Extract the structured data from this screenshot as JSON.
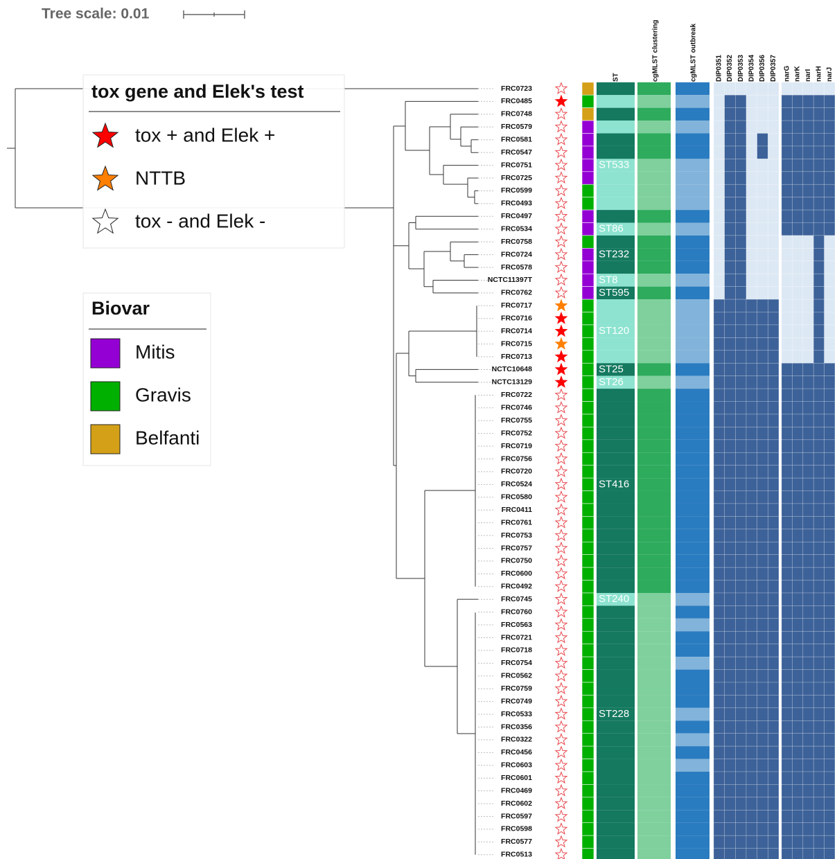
{
  "tree_scale": "Tree scale: 0.01",
  "legends": {
    "tox": {
      "title": "tox gene and Elek's test",
      "items": [
        {
          "label": "tox + and Elek +",
          "color": "#ff0000"
        },
        {
          "label": "NTTB",
          "color": "#ff7f00"
        },
        {
          "label": "tox - and Elek -",
          "color": "#ffffff"
        }
      ]
    },
    "biovar": {
      "title": "Biovar",
      "items": [
        {
          "label": "Mitis",
          "color": "#9400d3"
        },
        {
          "label": "Gravis",
          "color": "#00b000"
        },
        {
          "label": "Belfanti",
          "color": "#d4a017"
        }
      ]
    }
  },
  "columns": {
    "st": {
      "header": "ST",
      "colors": [
        "#14795f",
        "#8de3d0"
      ]
    },
    "cgmlst": {
      "header": "cgMLST clustering",
      "colors": [
        "#2eab5d",
        "#7fd09d"
      ]
    },
    "outbreak": {
      "header": "cgMLST outbreak",
      "colors": [
        "#2a7cc0",
        "#82b3da"
      ]
    },
    "genes": {
      "headers": [
        "DIP0351",
        "DIP0352",
        "DIP0353",
        "DIP0354",
        "DIP0356",
        "DIP0357",
        "narG",
        "narK",
        "narI",
        "narH",
        "narJ"
      ],
      "colors": [
        "#dce8f4",
        "#3d6299"
      ]
    }
  },
  "rows": [
    {
      "label": "FRC0723",
      "tox": 2,
      "biovar": 2,
      "st": 0,
      "cgmlst": 0,
      "outbreak": 0,
      "genes": [
        0,
        0,
        0,
        0,
        0,
        0,
        0,
        0,
        0,
        0,
        0
      ]
    },
    {
      "label": "FRC0485",
      "tox": 0,
      "biovar": 1,
      "st": 1,
      "cgmlst": 1,
      "outbreak": 1,
      "genes": [
        0,
        1,
        1,
        0,
        0,
        0,
        1,
        1,
        1,
        1,
        1
      ]
    },
    {
      "label": "FRC0748",
      "tox": 2,
      "biovar": 2,
      "st": 0,
      "cgmlst": 0,
      "outbreak": 0,
      "genes": [
        0,
        1,
        1,
        0,
        0,
        0,
        1,
        1,
        1,
        1,
        1
      ]
    },
    {
      "label": "FRC0579",
      "tox": 2,
      "biovar": 0,
      "st": 1,
      "cgmlst": 1,
      "outbreak": 1,
      "genes": [
        0,
        1,
        1,
        0,
        0,
        0,
        1,
        1,
        1,
        1,
        1
      ]
    },
    {
      "label": "FRC0581",
      "tox": 2,
      "biovar": 0,
      "st": 0,
      "cgmlst": 0,
      "outbreak": 0,
      "genes": [
        0,
        1,
        1,
        0,
        1,
        0,
        1,
        1,
        1,
        1,
        1
      ]
    },
    {
      "label": "FRC0547",
      "tox": 2,
      "biovar": 0,
      "st": 0,
      "cgmlst": 0,
      "outbreak": 0,
      "genes": [
        0,
        1,
        1,
        0,
        1,
        0,
        1,
        1,
        1,
        1,
        1
      ]
    },
    {
      "label": "FRC0751",
      "tox": 2,
      "biovar": 0,
      "st": 1,
      "st_label": "ST533",
      "cgmlst": 1,
      "outbreak": 1,
      "genes": [
        0,
        1,
        1,
        0,
        0,
        0,
        1,
        1,
        1,
        1,
        1
      ]
    },
    {
      "label": "FRC0725",
      "tox": 2,
      "biovar": 0,
      "st": 1,
      "cgmlst": 1,
      "outbreak": 1,
      "genes": [
        0,
        1,
        1,
        0,
        0,
        0,
        1,
        1,
        1,
        1,
        1
      ]
    },
    {
      "label": "FRC0599",
      "tox": 2,
      "biovar": 1,
      "st": 1,
      "cgmlst": 1,
      "outbreak": 1,
      "genes": [
        0,
        1,
        1,
        0,
        0,
        0,
        1,
        1,
        1,
        1,
        1
      ]
    },
    {
      "label": "FRC0493",
      "tox": 2,
      "biovar": 1,
      "st": 1,
      "cgmlst": 1,
      "outbreak": 1,
      "genes": [
        0,
        1,
        1,
        0,
        0,
        0,
        1,
        1,
        1,
        1,
        1
      ]
    },
    {
      "label": "FRC0497",
      "tox": 2,
      "biovar": 0,
      "st": 0,
      "cgmlst": 0,
      "outbreak": 0,
      "genes": [
        0,
        1,
        1,
        0,
        0,
        0,
        1,
        1,
        1,
        1,
        1
      ]
    },
    {
      "label": "FRC0534",
      "tox": 2,
      "biovar": 0,
      "st": 1,
      "st_label": "ST86",
      "cgmlst": 1,
      "outbreak": 1,
      "genes": [
        0,
        1,
        1,
        0,
        0,
        0,
        1,
        1,
        1,
        1,
        1
      ]
    },
    {
      "label": "FRC0758",
      "tox": 2,
      "biovar": 1,
      "st": 0,
      "cgmlst": 0,
      "outbreak": 0,
      "genes": [
        0,
        1,
        1,
        0,
        0,
        0,
        0,
        0,
        0,
        1,
        0
      ]
    },
    {
      "label": "FRC0724",
      "tox": 2,
      "biovar": 0,
      "st": 0,
      "st_label": "ST232",
      "cgmlst": 0,
      "outbreak": 0,
      "genes": [
        0,
        1,
        1,
        0,
        0,
        0,
        0,
        0,
        0,
        1,
        0
      ]
    },
    {
      "label": "FRC0578",
      "tox": 2,
      "biovar": 0,
      "st": 0,
      "cgmlst": 0,
      "outbreak": 0,
      "genes": [
        0,
        1,
        1,
        0,
        0,
        0,
        0,
        0,
        0,
        1,
        0
      ]
    },
    {
      "label": "NCTC11397T",
      "tox": 2,
      "biovar": 0,
      "st": 1,
      "st_label": "ST8",
      "cgmlst": 1,
      "outbreak": 1,
      "genes": [
        0,
        1,
        1,
        0,
        0,
        0,
        0,
        0,
        0,
        1,
        0
      ]
    },
    {
      "label": "FRC0762",
      "tox": 2,
      "biovar": 0,
      "st": 0,
      "st_label": "ST595",
      "cgmlst": 0,
      "outbreak": 0,
      "genes": [
        0,
        1,
        1,
        0,
        0,
        0,
        0,
        0,
        0,
        1,
        0
      ]
    },
    {
      "label": "FRC0717",
      "tox": 1,
      "biovar": 1,
      "st": 1,
      "cgmlst": 1,
      "outbreak": 1,
      "genes": [
        1,
        1,
        1,
        1,
        1,
        1,
        0,
        0,
        0,
        1,
        0
      ]
    },
    {
      "label": "FRC0716",
      "tox": 0,
      "biovar": 1,
      "st": 1,
      "cgmlst": 1,
      "outbreak": 1,
      "genes": [
        1,
        1,
        1,
        1,
        1,
        1,
        0,
        0,
        0,
        1,
        0
      ]
    },
    {
      "label": "FRC0714",
      "tox": 0,
      "biovar": 1,
      "st": 1,
      "st_label": "ST120",
      "cgmlst": 1,
      "outbreak": 1,
      "genes": [
        1,
        1,
        1,
        1,
        1,
        1,
        0,
        0,
        0,
        1,
        0
      ]
    },
    {
      "label": "FRC0715",
      "tox": 1,
      "biovar": 1,
      "st": 1,
      "cgmlst": 1,
      "outbreak": 1,
      "genes": [
        1,
        1,
        1,
        1,
        1,
        1,
        0,
        0,
        0,
        1,
        0
      ]
    },
    {
      "label": "FRC0713",
      "tox": 0,
      "biovar": 1,
      "st": 1,
      "cgmlst": 1,
      "outbreak": 1,
      "genes": [
        1,
        1,
        1,
        1,
        1,
        1,
        0,
        0,
        0,
        1,
        0
      ]
    },
    {
      "label": "NCTC10648",
      "tox": 0,
      "biovar": 1,
      "st": 0,
      "st_label": "ST25",
      "cgmlst": 0,
      "outbreak": 0,
      "genes": [
        1,
        1,
        1,
        1,
        1,
        1,
        1,
        1,
        1,
        1,
        1
      ]
    },
    {
      "label": "NCTC13129",
      "tox": 0,
      "biovar": 1,
      "st": 1,
      "st_label": "ST26",
      "cgmlst": 1,
      "outbreak": 1,
      "genes": [
        1,
        1,
        1,
        1,
        1,
        1,
        1,
        1,
        1,
        1,
        1
      ]
    },
    {
      "label": "FRC0722",
      "tox": 2,
      "biovar": 1,
      "st": 0,
      "cgmlst": 0,
      "outbreak": 0,
      "genes": [
        1,
        1,
        1,
        1,
        1,
        1,
        1,
        1,
        1,
        1,
        1
      ]
    },
    {
      "label": "FRC0746",
      "tox": 2,
      "biovar": 1,
      "st": 0,
      "cgmlst": 0,
      "outbreak": 0,
      "genes": [
        1,
        1,
        1,
        1,
        1,
        1,
        1,
        1,
        1,
        1,
        1
      ]
    },
    {
      "label": "FRC0755",
      "tox": 2,
      "biovar": 1,
      "st": 0,
      "cgmlst": 0,
      "outbreak": 0,
      "genes": [
        1,
        1,
        1,
        1,
        1,
        1,
        1,
        1,
        1,
        1,
        1
      ]
    },
    {
      "label": "FRC0752",
      "tox": 2,
      "biovar": 1,
      "st": 0,
      "cgmlst": 0,
      "outbreak": 0,
      "genes": [
        1,
        1,
        1,
        1,
        1,
        1,
        1,
        1,
        1,
        1,
        1
      ]
    },
    {
      "label": "FRC0719",
      "tox": 2,
      "biovar": 1,
      "st": 0,
      "cgmlst": 0,
      "outbreak": 0,
      "genes": [
        1,
        1,
        1,
        1,
        1,
        1,
        1,
        1,
        1,
        1,
        1
      ]
    },
    {
      "label": "FRC0756",
      "tox": 2,
      "biovar": 1,
      "st": 0,
      "cgmlst": 0,
      "outbreak": 0,
      "genes": [
        1,
        1,
        1,
        1,
        1,
        1,
        1,
        1,
        1,
        1,
        1
      ]
    },
    {
      "label": "FRC0720",
      "tox": 2,
      "biovar": 1,
      "st": 0,
      "cgmlst": 0,
      "outbreak": 0,
      "genes": [
        1,
        1,
        1,
        1,
        1,
        1,
        1,
        1,
        1,
        1,
        1
      ]
    },
    {
      "label": "FRC0524",
      "tox": 2,
      "biovar": 1,
      "st": 0,
      "st_label": "ST416",
      "cgmlst": 0,
      "outbreak": 0,
      "genes": [
        1,
        1,
        1,
        1,
        1,
        1,
        1,
        1,
        1,
        1,
        1
      ]
    },
    {
      "label": "FRC0580",
      "tox": 2,
      "biovar": 1,
      "st": 0,
      "cgmlst": 0,
      "outbreak": 0,
      "genes": [
        1,
        1,
        1,
        1,
        1,
        1,
        1,
        1,
        1,
        1,
        1
      ]
    },
    {
      "label": "FRC0411",
      "tox": 2,
      "biovar": 1,
      "st": 0,
      "cgmlst": 0,
      "outbreak": 0,
      "genes": [
        1,
        1,
        1,
        1,
        1,
        1,
        1,
        1,
        1,
        1,
        1
      ]
    },
    {
      "label": "FRC0761",
      "tox": 2,
      "biovar": 1,
      "st": 0,
      "cgmlst": 0,
      "outbreak": 0,
      "genes": [
        1,
        1,
        1,
        1,
        1,
        1,
        1,
        1,
        1,
        1,
        1
      ]
    },
    {
      "label": "FRC0753",
      "tox": 2,
      "biovar": 1,
      "st": 0,
      "cgmlst": 0,
      "outbreak": 0,
      "genes": [
        1,
        1,
        1,
        1,
        1,
        1,
        1,
        1,
        1,
        1,
        1
      ]
    },
    {
      "label": "FRC0757",
      "tox": 2,
      "biovar": 1,
      "st": 0,
      "cgmlst": 0,
      "outbreak": 0,
      "genes": [
        1,
        1,
        1,
        1,
        1,
        1,
        1,
        1,
        1,
        1,
        1
      ]
    },
    {
      "label": "FRC0750",
      "tox": 2,
      "biovar": 1,
      "st": 0,
      "cgmlst": 0,
      "outbreak": 0,
      "genes": [
        1,
        1,
        1,
        1,
        1,
        1,
        1,
        1,
        1,
        1,
        1
      ]
    },
    {
      "label": "FRC0600",
      "tox": 2,
      "biovar": 1,
      "st": 0,
      "cgmlst": 0,
      "outbreak": 0,
      "genes": [
        1,
        1,
        1,
        1,
        1,
        1,
        1,
        1,
        1,
        1,
        1
      ]
    },
    {
      "label": "FRC0492",
      "tox": 2,
      "biovar": 1,
      "st": 0,
      "cgmlst": 0,
      "outbreak": 0,
      "genes": [
        1,
        1,
        1,
        1,
        1,
        1,
        1,
        1,
        1,
        1,
        1
      ]
    },
    {
      "label": "FRC0745",
      "tox": 2,
      "biovar": 1,
      "st": 1,
      "st_label": "ST240",
      "cgmlst": 1,
      "outbreak": 1,
      "genes": [
        1,
        1,
        1,
        1,
        1,
        1,
        1,
        1,
        1,
        1,
        1
      ]
    },
    {
      "label": "FRC0760",
      "tox": 2,
      "biovar": 1,
      "st": 0,
      "cgmlst": 1,
      "outbreak": 0,
      "genes": [
        1,
        1,
        1,
        1,
        1,
        1,
        1,
        1,
        1,
        1,
        1
      ]
    },
    {
      "label": "FRC0563",
      "tox": 2,
      "biovar": 1,
      "st": 0,
      "cgmlst": 1,
      "outbreak": 1,
      "genes": [
        1,
        1,
        1,
        1,
        1,
        1,
        1,
        1,
        1,
        1,
        1
      ]
    },
    {
      "label": "FRC0721",
      "tox": 2,
      "biovar": 1,
      "st": 0,
      "cgmlst": 1,
      "outbreak": 0,
      "genes": [
        1,
        1,
        1,
        1,
        1,
        1,
        1,
        1,
        1,
        1,
        1
      ]
    },
    {
      "label": "FRC0718",
      "tox": 2,
      "biovar": 1,
      "st": 0,
      "cgmlst": 1,
      "outbreak": 0,
      "genes": [
        1,
        1,
        1,
        1,
        1,
        1,
        1,
        1,
        1,
        1,
        1
      ]
    },
    {
      "label": "FRC0754",
      "tox": 2,
      "biovar": 1,
      "st": 0,
      "cgmlst": 1,
      "outbreak": 1,
      "genes": [
        1,
        1,
        1,
        1,
        1,
        1,
        1,
        1,
        1,
        1,
        1
      ]
    },
    {
      "label": "FRC0562",
      "tox": 2,
      "biovar": 1,
      "st": 0,
      "cgmlst": 1,
      "outbreak": 0,
      "genes": [
        1,
        1,
        1,
        1,
        1,
        1,
        1,
        1,
        1,
        1,
        1
      ]
    },
    {
      "label": "FRC0759",
      "tox": 2,
      "biovar": 1,
      "st": 0,
      "cgmlst": 1,
      "outbreak": 0,
      "genes": [
        1,
        1,
        1,
        1,
        1,
        1,
        1,
        1,
        1,
        1,
        1
      ]
    },
    {
      "label": "FRC0749",
      "tox": 2,
      "biovar": 1,
      "st": 0,
      "cgmlst": 1,
      "outbreak": 0,
      "genes": [
        1,
        1,
        1,
        1,
        1,
        1,
        1,
        1,
        1,
        1,
        1
      ]
    },
    {
      "label": "FRC0533",
      "tox": 2,
      "biovar": 1,
      "st": 0,
      "st_label": "ST228",
      "cgmlst": 1,
      "outbreak": 1,
      "genes": [
        1,
        1,
        1,
        1,
        1,
        1,
        1,
        1,
        1,
        1,
        1
      ]
    },
    {
      "label": "FRC0356",
      "tox": 2,
      "biovar": 1,
      "st": 0,
      "cgmlst": 1,
      "outbreak": 0,
      "genes": [
        1,
        1,
        1,
        1,
        1,
        1,
        1,
        1,
        1,
        1,
        1
      ]
    },
    {
      "label": "FRC0322",
      "tox": 2,
      "biovar": 1,
      "st": 0,
      "cgmlst": 1,
      "outbreak": 1,
      "genes": [
        1,
        1,
        1,
        1,
        1,
        1,
        1,
        1,
        1,
        1,
        1
      ]
    },
    {
      "label": "FRC0456",
      "tox": 2,
      "biovar": 1,
      "st": 0,
      "cgmlst": 1,
      "outbreak": 0,
      "genes": [
        1,
        1,
        1,
        1,
        1,
        1,
        1,
        1,
        1,
        1,
        1
      ]
    },
    {
      "label": "FRC0603",
      "tox": 2,
      "biovar": 1,
      "st": 0,
      "cgmlst": 1,
      "outbreak": 1,
      "genes": [
        1,
        1,
        1,
        1,
        1,
        1,
        1,
        1,
        1,
        1,
        1
      ]
    },
    {
      "label": "FRC0601",
      "tox": 2,
      "biovar": 1,
      "st": 0,
      "cgmlst": 1,
      "outbreak": 0,
      "genes": [
        1,
        1,
        1,
        1,
        1,
        1,
        1,
        1,
        1,
        1,
        1
      ]
    },
    {
      "label": "FRC0469",
      "tox": 2,
      "biovar": 1,
      "st": 0,
      "cgmlst": 1,
      "outbreak": 0,
      "genes": [
        1,
        1,
        1,
        1,
        1,
        1,
        1,
        1,
        1,
        1,
        1
      ]
    },
    {
      "label": "FRC0602",
      "tox": 2,
      "biovar": 1,
      "st": 0,
      "cgmlst": 1,
      "outbreak": 0,
      "genes": [
        1,
        1,
        1,
        1,
        1,
        1,
        1,
        1,
        1,
        1,
        1
      ]
    },
    {
      "label": "FRC0597",
      "tox": 2,
      "biovar": 1,
      "st": 0,
      "cgmlst": 1,
      "outbreak": 0,
      "genes": [
        1,
        1,
        1,
        1,
        1,
        1,
        1,
        1,
        1,
        1,
        1
      ]
    },
    {
      "label": "FRC0598",
      "tox": 2,
      "biovar": 1,
      "st": 0,
      "cgmlst": 1,
      "outbreak": 0,
      "genes": [
        1,
        1,
        1,
        1,
        1,
        1,
        1,
        1,
        1,
        1,
        1
      ]
    },
    {
      "label": "FRC0577",
      "tox": 2,
      "biovar": 1,
      "st": 0,
      "cgmlst": 1,
      "outbreak": 0,
      "genes": [
        1,
        1,
        1,
        1,
        1,
        1,
        1,
        1,
        1,
        1,
        1
      ]
    },
    {
      "label": "FRC0513",
      "tox": 2,
      "biovar": 1,
      "st": 0,
      "cgmlst": 1,
      "outbreak": 0,
      "genes": [
        1,
        1,
        1,
        1,
        1,
        1,
        1,
        1,
        1,
        1,
        1
      ]
    }
  ]
}
